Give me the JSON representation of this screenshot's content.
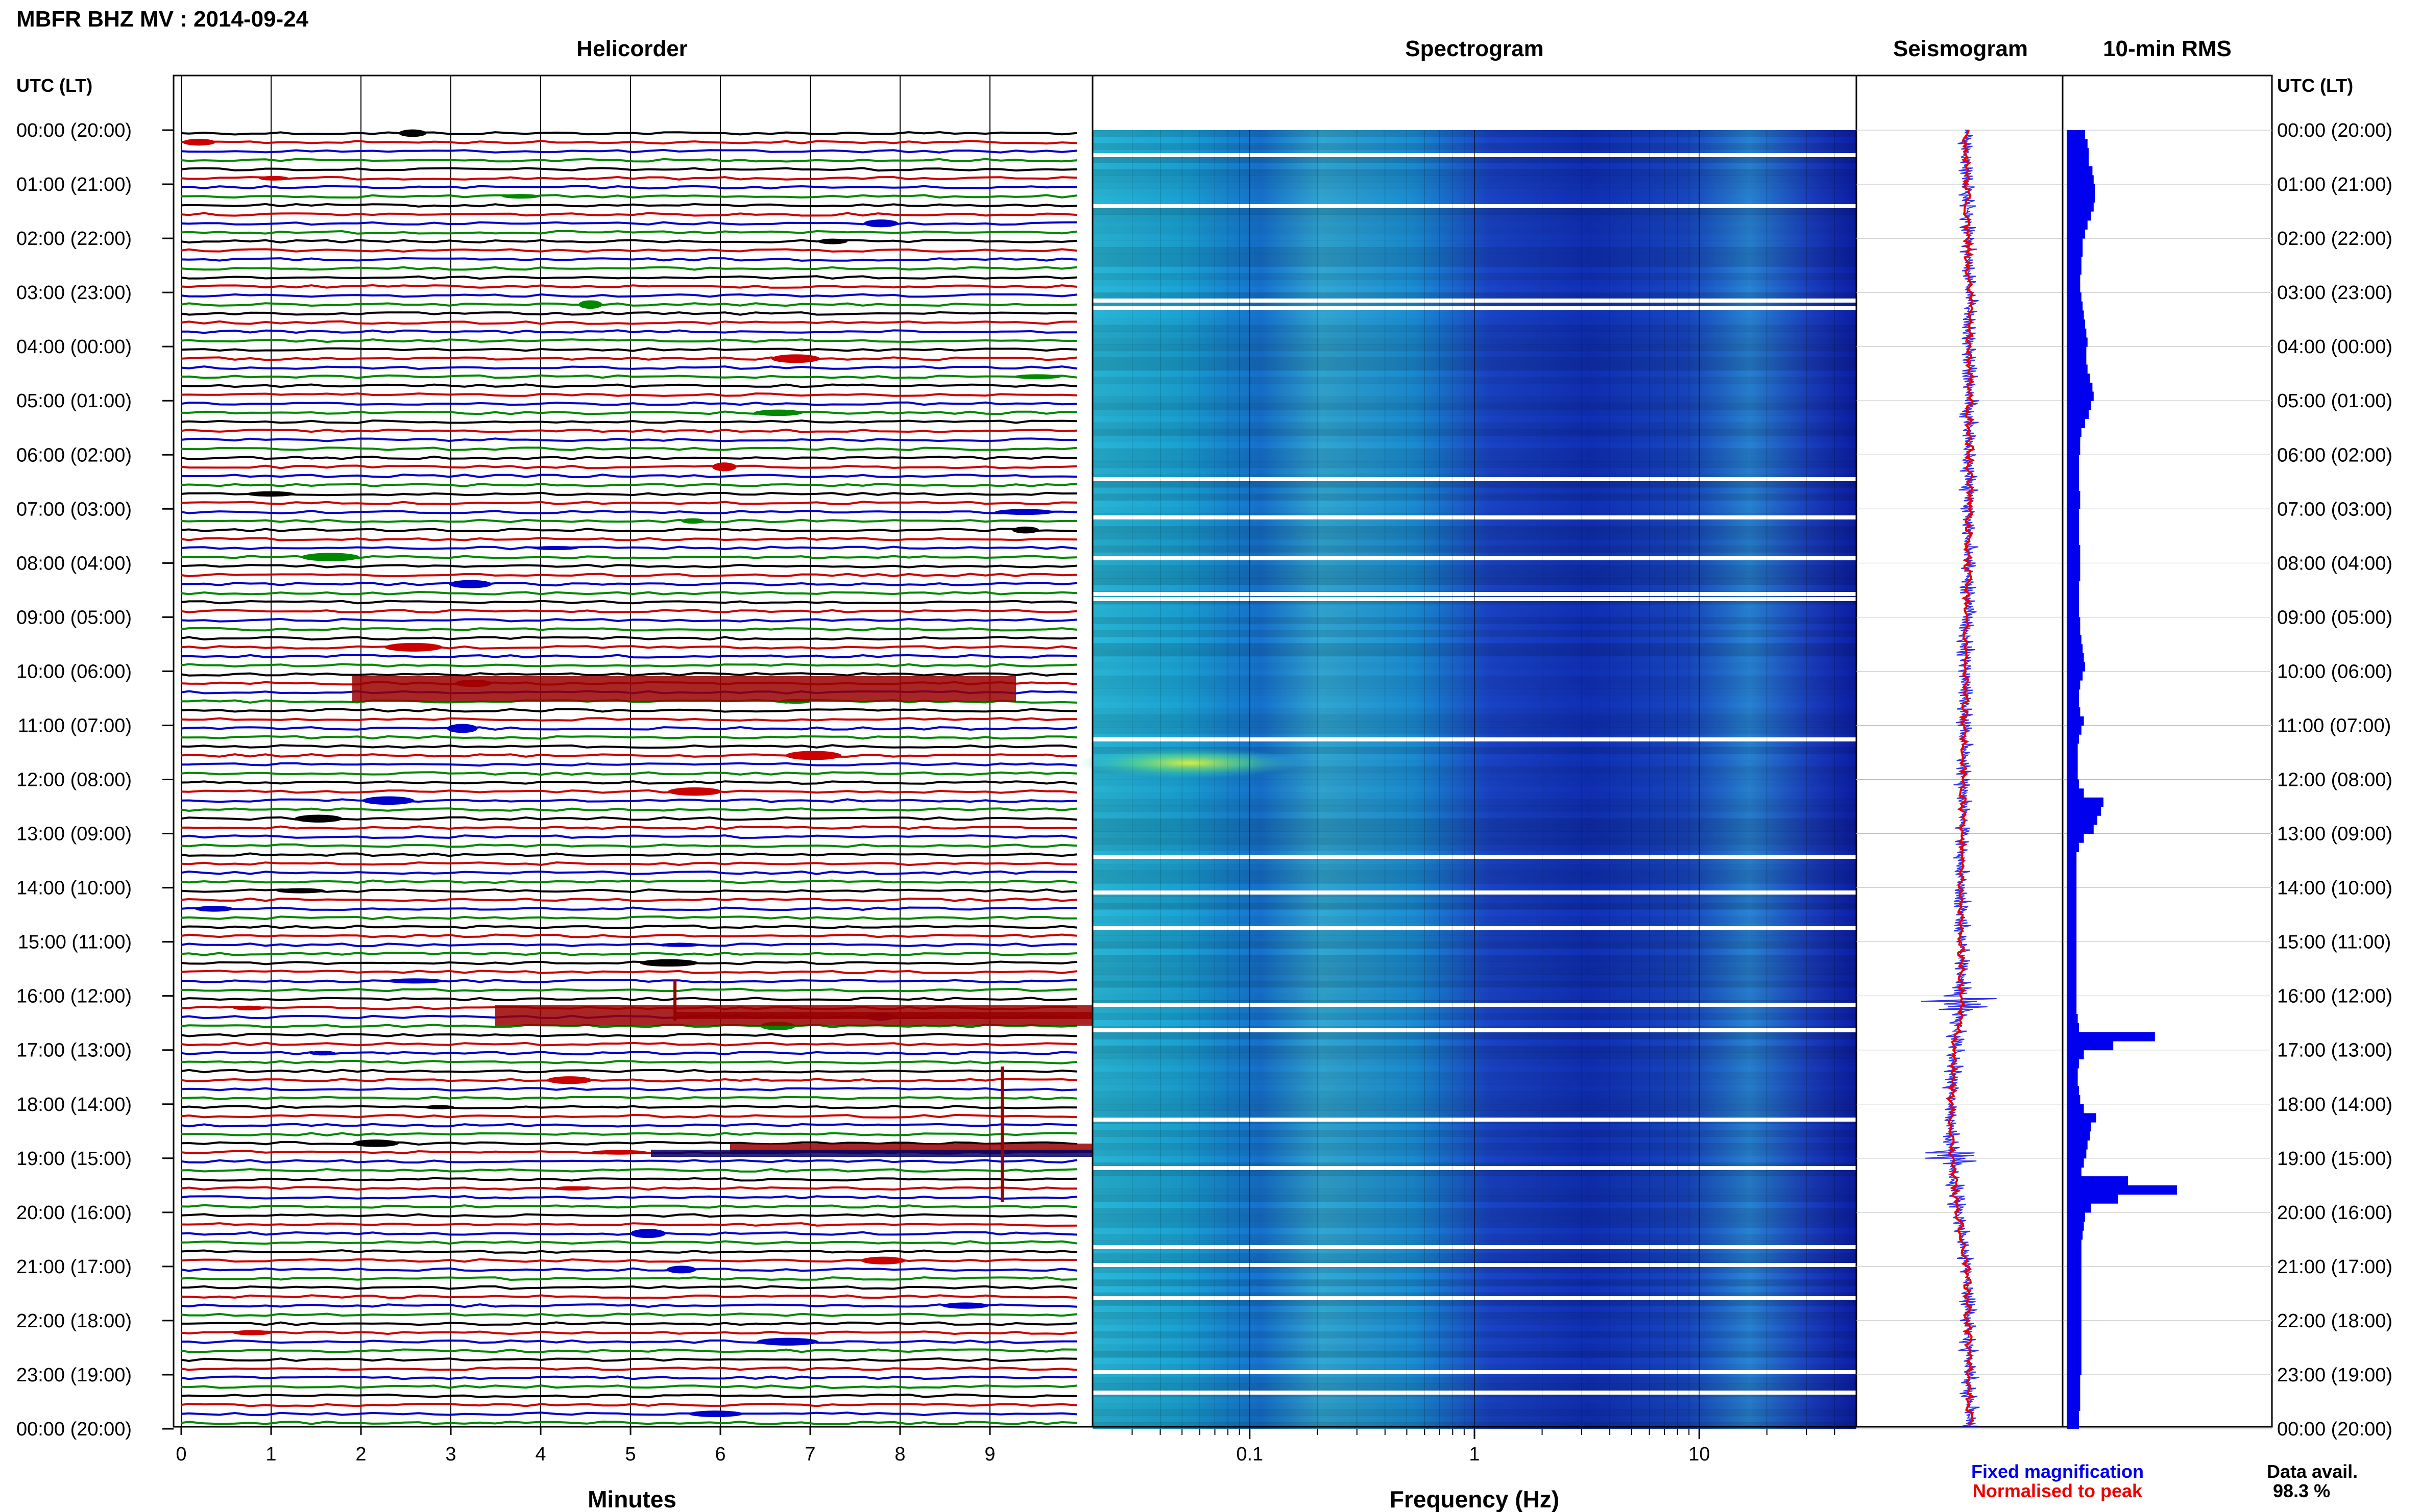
{
  "header": {
    "station_title": "MBFR BHZ MV : 2014-09-24",
    "utc_lt_label": "UTC (LT)"
  },
  "panels": {
    "helicorder": "Helicorder",
    "spectrogram": "Spectrogram",
    "seismogram": "Seismogram",
    "rms": "10-min RMS"
  },
  "time_labels": [
    "00:00 (20:00)",
    "01:00 (21:00)",
    "02:00 (22:00)",
    "03:00 (23:00)",
    "04:00 (00:00)",
    "05:00 (01:00)",
    "06:00 (02:00)",
    "07:00 (03:00)",
    "08:00 (04:00)",
    "09:00 (05:00)",
    "10:00 (06:00)",
    "11:00 (07:00)",
    "12:00 (08:00)",
    "13:00 (09:00)",
    "14:00 (10:00)",
    "15:00 (11:00)",
    "16:00 (12:00)",
    "17:00 (13:00)",
    "18:00 (14:00)",
    "19:00 (15:00)",
    "20:00 (16:00)",
    "21:00 (17:00)",
    "22:00 (18:00)",
    "23:00 (19:00)",
    "00:00 (20:00)"
  ],
  "x_axes": {
    "minutes_label": "Minutes",
    "minutes_ticks": [
      "0",
      "1",
      "2",
      "3",
      "4",
      "5",
      "6",
      "7",
      "8",
      "9"
    ],
    "frequency_label": "Frequency (Hz)",
    "frequency_ticks": [
      "0.1",
      "1",
      "10"
    ]
  },
  "legend": {
    "fixed": "Fixed magnification",
    "normalised": "Normalised to peak",
    "fixed_color": "#0000ee",
    "normalised_color": "#ee0000"
  },
  "data_availability": {
    "label": "Data avail.",
    "value": "98.3 %"
  },
  "colors": {
    "trace_cycle": [
      "#000000",
      "#cc0000",
      "#0000cc",
      "#008800"
    ],
    "rms_bar": "#0000ee",
    "seis_fixed": "#0000ee",
    "seis_norm": "#ee0000"
  },
  "chart_data": [
    {
      "type": "line",
      "title": "Helicorder",
      "xlabel": "Minutes",
      "ylabel": "UTC (LT)",
      "xlim": [
        0,
        10
      ],
      "rows_per_hour": 6,
      "rows": 144,
      "trace_color_cycle": [
        "black",
        "red",
        "blue",
        "green"
      ],
      "notable_events": [
        {
          "time_utc": "16:10",
          "minutes": [
            5.3,
            5.8
          ],
          "description_label": ""
        },
        {
          "time_utc": "18:40",
          "minutes": [
            9.05,
            9.15
          ]
        }
      ]
    },
    {
      "type": "heatmap",
      "title": "Spectrogram",
      "xlabel": "Frequency (Hz)",
      "x_scale": "log",
      "xlim": [
        0.02,
        50
      ],
      "x_ticks": [
        0.1,
        1,
        10
      ],
      "ylabel": "UTC (LT)",
      "colormap": "jet"
    },
    {
      "type": "line",
      "title": "Seismogram",
      "series": [
        {
          "name": "Fixed magnification",
          "color": "#0000ee"
        },
        {
          "name": "Normalised to peak",
          "color": "#ee0000"
        }
      ]
    },
    {
      "type": "bar",
      "title": "10-min RMS",
      "orientation": "horizontal",
      "bins_per_hour": 6,
      "values": [
        0.15,
        0.17,
        0.18,
        0.18,
        0.21,
        0.22,
        0.23,
        0.23,
        0.22,
        0.2,
        0.17,
        0.15,
        0.13,
        0.13,
        0.12,
        0.12,
        0.11,
        0.11,
        0.12,
        0.13,
        0.14,
        0.15,
        0.16,
        0.17,
        0.16,
        0.16,
        0.17,
        0.19,
        0.21,
        0.22,
        0.2,
        0.18,
        0.15,
        0.12,
        0.11,
        0.11,
        0.1,
        0.1,
        0.1,
        0.1,
        0.11,
        0.11,
        0.1,
        0.1,
        0.1,
        0.1,
        0.11,
        0.11,
        0.11,
        0.11,
        0.1,
        0.1,
        0.1,
        0.1,
        0.11,
        0.11,
        0.12,
        0.13,
        0.14,
        0.15,
        0.13,
        0.11,
        0.1,
        0.1,
        0.11,
        0.14,
        0.12,
        0.1,
        0.09,
        0.09,
        0.09,
        0.09,
        0.1,
        0.14,
        0.3,
        0.28,
        0.25,
        0.22,
        0.14,
        0.1,
        0.08,
        0.08,
        0.08,
        0.08,
        0.08,
        0.08,
        0.08,
        0.08,
        0.08,
        0.08,
        0.08,
        0.08,
        0.08,
        0.08,
        0.08,
        0.08,
        0.08,
        0.08,
        0.09,
        0.1,
        0.72,
        0.38,
        0.14,
        0.1,
        0.09,
        0.09,
        0.1,
        0.11,
        0.14,
        0.24,
        0.2,
        0.19,
        0.17,
        0.16,
        0.14,
        0.12,
        0.5,
        0.9,
        0.42,
        0.2,
        0.15,
        0.14,
        0.13,
        0.12,
        0.12,
        0.12,
        0.12,
        0.12,
        0.12,
        0.12,
        0.12,
        0.12,
        0.12,
        0.12,
        0.12,
        0.12,
        0.12,
        0.12,
        0.11,
        0.11,
        0.11,
        0.11,
        0.1,
        0.1
      ]
    }
  ]
}
